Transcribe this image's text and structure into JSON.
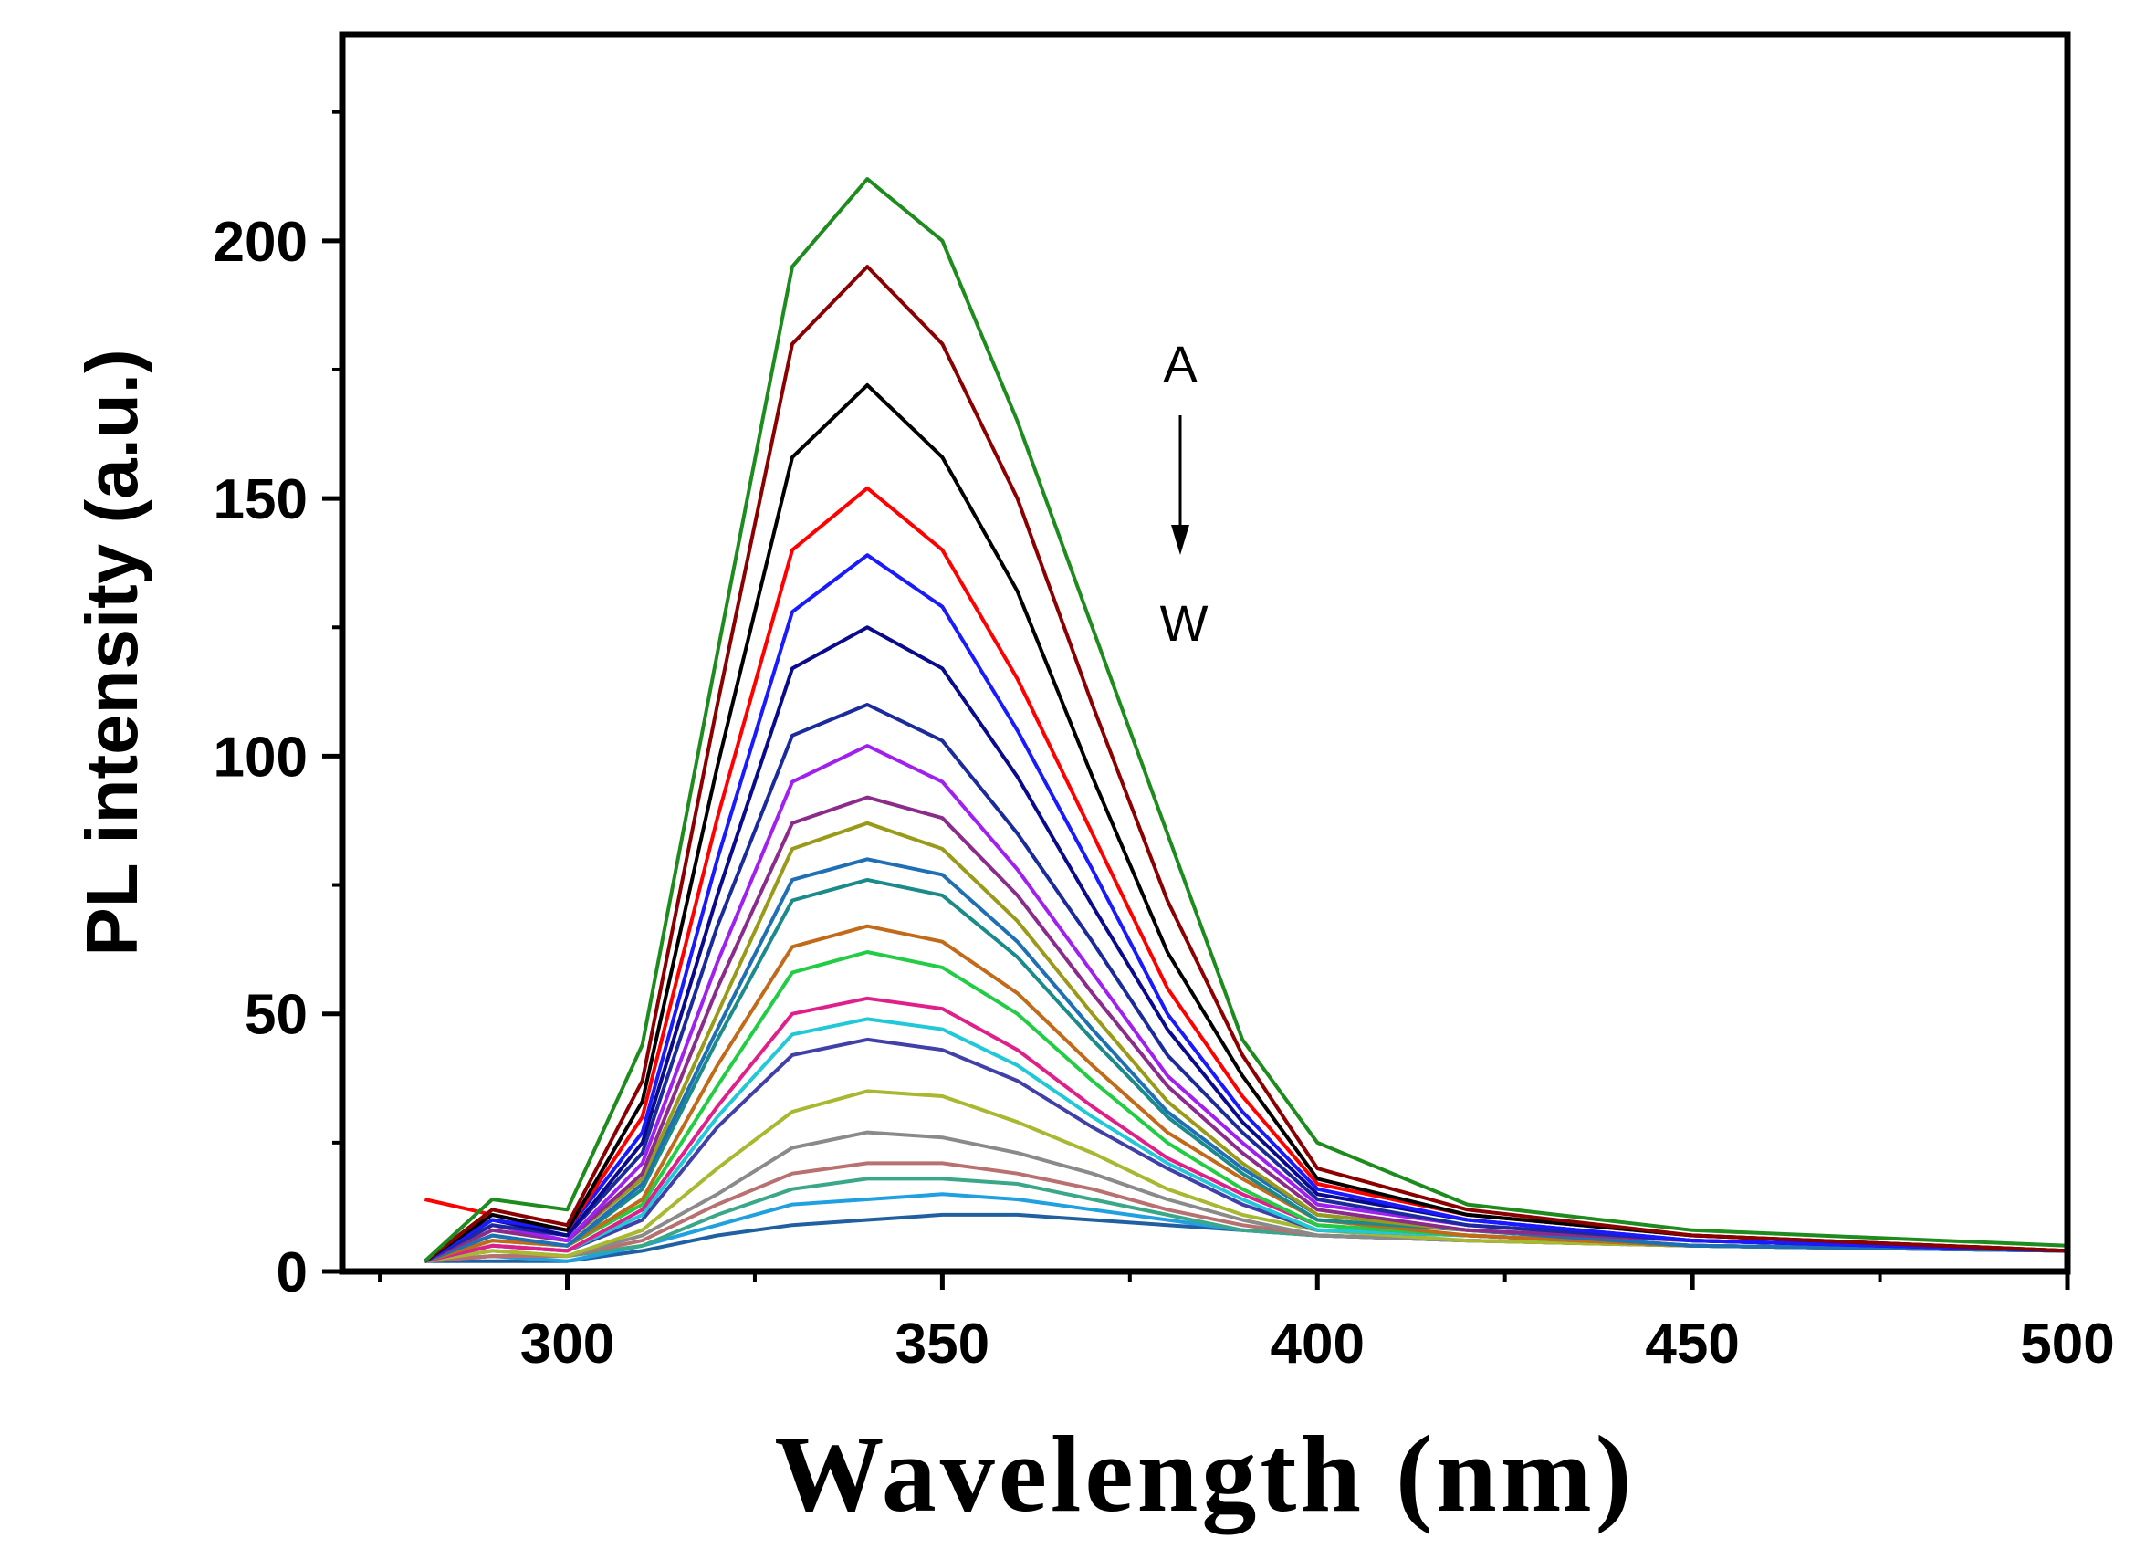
{
  "chart_data": {
    "type": "line",
    "title": "",
    "xlabel": "Wavelength (nm)",
    "ylabel": "PL intensity (a.u.)",
    "xlim": [
      270,
      500
    ],
    "ylim": [
      0,
      240
    ],
    "xticks": [
      300,
      350,
      400,
      450,
      500
    ],
    "yticks": [
      0,
      50,
      100,
      150,
      200
    ],
    "grid": false,
    "legend": "none",
    "annotation": {
      "start": "A",
      "end": "W",
      "arrow": "down"
    },
    "x": [
      281,
      290,
      300,
      310,
      320,
      330,
      340,
      350,
      360,
      370,
      380,
      390,
      400,
      420,
      450,
      500
    ],
    "series": [
      {
        "color": "#1e8b1e",
        "values": [
          2,
          14,
          12,
          44,
          120,
          195,
          212,
          200,
          165,
          125,
          85,
          45,
          25,
          13,
          8,
          5
        ]
      },
      {
        "color": "#8b0000",
        "values": [
          2,
          12,
          9,
          37,
          110,
          180,
          195,
          180,
          150,
          110,
          72,
          42,
          20,
          12,
          7,
          4
        ]
      },
      {
        "color": "#000000",
        "values": [
          2,
          11,
          8,
          33,
          98,
          158,
          172,
          158,
          132,
          96,
          62,
          38,
          18,
          11,
          7,
          4
        ]
      },
      {
        "color": "#ff0000",
        "values": [
          14,
          11,
          8,
          30,
          88,
          140,
          152,
          140,
          115,
          85,
          55,
          34,
          17,
          11,
          7,
          4
        ]
      },
      {
        "color": "#1a1aff",
        "values": [
          2,
          10,
          8,
          27,
          80,
          128,
          139,
          129,
          105,
          78,
          50,
          31,
          16,
          10,
          6,
          4
        ]
      },
      {
        "color": "#0a0a8c",
        "values": [
          2,
          10,
          7,
          25,
          73,
          117,
          125,
          117,
          96,
          71,
          47,
          29,
          15,
          10,
          6,
          4
        ]
      },
      {
        "color": "#1c2b9c",
        "values": [
          2,
          9,
          7,
          23,
          67,
          104,
          110,
          103,
          85,
          64,
          42,
          27,
          14,
          9,
          6,
          4
        ]
      },
      {
        "color": "#a020f0",
        "values": [
          2,
          9,
          6,
          21,
          60,
          95,
          102,
          95,
          78,
          58,
          38,
          25,
          13,
          9,
          6,
          4
        ]
      },
      {
        "color": "#8b2c8b",
        "values": [
          2,
          8,
          6,
          19,
          55,
          87,
          92,
          88,
          73,
          54,
          36,
          23,
          12,
          8,
          6,
          4
        ]
      },
      {
        "color": "#9a9a1a",
        "values": [
          2,
          8,
          6,
          18,
          50,
          82,
          87,
          82,
          68,
          50,
          33,
          21,
          11,
          8,
          6,
          4
        ]
      },
      {
        "color": "#1f6fb4",
        "values": [
          2,
          7,
          5,
          17,
          47,
          76,
          80,
          77,
          64,
          47,
          31,
          20,
          11,
          8,
          5,
          4
        ]
      },
      {
        "color": "#1a8a8a",
        "values": [
          2,
          7,
          5,
          16,
          45,
          72,
          76,
          73,
          61,
          45,
          30,
          19,
          10,
          8,
          5,
          4
        ]
      },
      {
        "color": "#c06a1a",
        "values": [
          2,
          6,
          5,
          14,
          40,
          63,
          67,
          64,
          54,
          40,
          27,
          18,
          10,
          7,
          5,
          4
        ]
      },
      {
        "color": "#22cc44",
        "values": [
          2,
          6,
          5,
          13,
          36,
          58,
          62,
          59,
          50,
          37,
          25,
          16,
          9,
          7,
          5,
          4
        ]
      },
      {
        "color": "#e0208a",
        "values": [
          2,
          5,
          4,
          12,
          32,
          50,
          53,
          51,
          43,
          32,
          22,
          15,
          9,
          7,
          5,
          4
        ]
      },
      {
        "color": "#20c8d8",
        "values": [
          2,
          5,
          4,
          11,
          30,
          46,
          49,
          47,
          40,
          30,
          21,
          14,
          8,
          7,
          5,
          4
        ]
      },
      {
        "color": "#4040a8",
        "values": [
          2,
          5,
          4,
          10,
          28,
          42,
          45,
          43,
          37,
          28,
          20,
          13,
          8,
          7,
          5,
          4
        ]
      },
      {
        "color": "#a8b830",
        "values": [
          2,
          4,
          3,
          8,
          20,
          31,
          35,
          34,
          29,
          23,
          16,
          11,
          8,
          6,
          5,
          4
        ]
      },
      {
        "color": "#8a8a8a",
        "values": [
          2,
          4,
          3,
          7,
          15,
          24,
          27,
          26,
          23,
          19,
          14,
          10,
          7,
          6,
          5,
          4
        ]
      },
      {
        "color": "#b87070",
        "values": [
          2,
          3,
          3,
          6,
          13,
          19,
          21,
          21,
          19,
          16,
          12,
          9,
          7,
          6,
          5,
          4
        ]
      },
      {
        "color": "#3aa888",
        "values": [
          2,
          3,
          3,
          5,
          11,
          16,
          18,
          18,
          17,
          14,
          11,
          8,
          7,
          6,
          5,
          4
        ]
      },
      {
        "color": "#20a0e0",
        "values": [
          2,
          3,
          2,
          5,
          9,
          13,
          14,
          15,
          14,
          12,
          10,
          8,
          7,
          6,
          5,
          4
        ]
      },
      {
        "color": "#2060a0",
        "values": [
          2,
          2,
          2,
          4,
          7,
          9,
          10,
          11,
          11,
          10,
          9,
          8,
          7,
          6,
          5,
          4
        ]
      }
    ]
  }
}
